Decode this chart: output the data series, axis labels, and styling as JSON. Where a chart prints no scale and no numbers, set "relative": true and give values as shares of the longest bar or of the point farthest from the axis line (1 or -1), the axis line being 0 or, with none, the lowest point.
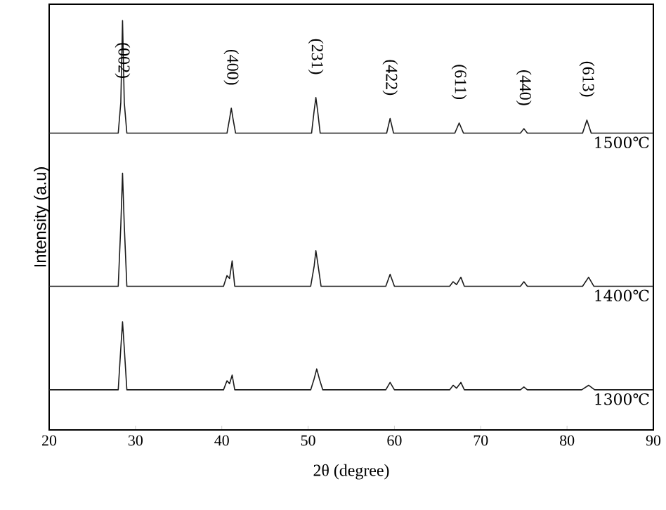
{
  "chart_data": {
    "type": "line",
    "relative": true,
    "xlabel": "2θ (degree)",
    "ylabel": "Intensity (a.u)",
    "xlim": [
      20,
      90
    ],
    "xticks": [
      20,
      30,
      40,
      50,
      60,
      70,
      80,
      90
    ],
    "legend": false,
    "marker": "none",
    "line_style": "solid",
    "series": [
      {
        "name": "1500℃",
        "color": "#1a1a1a",
        "x": [
          20,
          28.0,
          28.3,
          28.5,
          28.7,
          29.0,
          40.6,
          40.9,
          41.1,
          41.3,
          41.6,
          50.4,
          50.7,
          50.9,
          51.1,
          51.4,
          59.1,
          59.5,
          59.9,
          67.0,
          67.5,
          68.0,
          74.6,
          75.0,
          75.4,
          81.8,
          82.3,
          82.8,
          90
        ],
        "values": [
          0.725,
          0.725,
          0.8,
          1.0,
          0.8,
          0.725,
          0.725,
          0.76,
          0.786,
          0.76,
          0.725,
          0.725,
          0.78,
          0.812,
          0.78,
          0.725,
          0.725,
          0.761,
          0.725,
          0.725,
          0.75,
          0.725,
          0.725,
          0.736,
          0.725,
          0.725,
          0.757,
          0.725,
          0.725
        ]
      },
      {
        "name": "1400℃",
        "color": "#1a1a1a",
        "x": [
          20,
          28.0,
          28.3,
          28.5,
          28.7,
          29.0,
          40.2,
          40.6,
          40.9,
          41.2,
          41.5,
          50.3,
          50.7,
          50.9,
          51.1,
          51.5,
          59.0,
          59.5,
          60.0,
          66.4,
          66.8,
          67.2,
          67.7,
          68.1,
          74.6,
          75.0,
          75.4,
          81.8,
          82.5,
          83.1,
          90
        ],
        "values": [
          0.351,
          0.351,
          0.5,
          0.627,
          0.5,
          0.351,
          0.351,
          0.377,
          0.37,
          0.413,
          0.351,
          0.351,
          0.4,
          0.438,
          0.41,
          0.351,
          0.351,
          0.38,
          0.351,
          0.351,
          0.362,
          0.355,
          0.373,
          0.351,
          0.351,
          0.362,
          0.351,
          0.351,
          0.373,
          0.351,
          0.351
        ]
      },
      {
        "name": "1300℃",
        "color": "#1a1a1a",
        "x": [
          20,
          28.0,
          28.3,
          28.5,
          28.7,
          29.0,
          40.2,
          40.6,
          40.9,
          41.2,
          41.5,
          50.3,
          50.7,
          51.0,
          51.3,
          51.7,
          59.0,
          59.5,
          60.0,
          66.4,
          66.8,
          67.2,
          67.7,
          68.1,
          74.6,
          75.0,
          75.4,
          81.7,
          82.5,
          83.2,
          90
        ],
        "values": [
          0.098,
          0.098,
          0.2,
          0.264,
          0.2,
          0.098,
          0.098,
          0.12,
          0.113,
          0.134,
          0.098,
          0.098,
          0.125,
          0.149,
          0.125,
          0.098,
          0.098,
          0.116,
          0.098,
          0.098,
          0.109,
          0.102,
          0.116,
          0.098,
          0.098,
          0.105,
          0.098,
          0.098,
          0.109,
          0.098,
          0.098
        ]
      }
    ],
    "annotations": [
      {
        "text": "(002)",
        "x": 28.5,
        "y": 1.0
      },
      {
        "text": "(400)",
        "x": 41.1,
        "y": 0.786
      },
      {
        "text": "(231)",
        "x": 50.9,
        "y": 0.812
      },
      {
        "text": "(422)",
        "x": 59.5,
        "y": 0.761
      },
      {
        "text": "(611)",
        "x": 67.5,
        "y": 0.75
      },
      {
        "text": "(440)",
        "x": 75,
        "y": 0.736
      },
      {
        "text": "(613)",
        "x": 82.3,
        "y": 0.757
      }
    ]
  }
}
